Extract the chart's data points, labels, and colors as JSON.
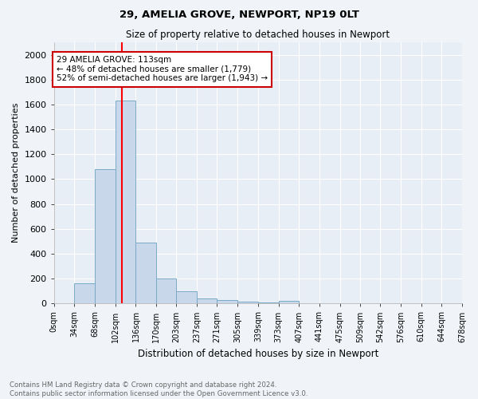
{
  "title1": "29, AMELIA GROVE, NEWPORT, NP19 0LT",
  "title2": "Size of property relative to detached houses in Newport",
  "xlabel": "Distribution of detached houses by size in Newport",
  "ylabel": "Number of detached properties",
  "bar_color": "#c8d8ea",
  "bar_edge_color": "#7aaac8",
  "background_color": "#e8eef5",
  "grid_color": "#ffffff",
  "annotation_box_color": "#cc0000",
  "annotation_line1": "29 AMELIA GROVE: 113sqm",
  "annotation_line2": "← 48% of detached houses are smaller (1,779)",
  "annotation_line3": "52% of semi-detached houses are larger (1,943) →",
  "red_line_x": 113,
  "bins": [
    0,
    34,
    68,
    102,
    136,
    170,
    203,
    237,
    271,
    305,
    339,
    373,
    407,
    441,
    475,
    509,
    542,
    576,
    610,
    644,
    678
  ],
  "bin_labels": [
    "0sqm",
    "34sqm",
    "68sqm",
    "102sqm",
    "136sqm",
    "170sqm",
    "203sqm",
    "237sqm",
    "271sqm",
    "305sqm",
    "339sqm",
    "373sqm",
    "407sqm",
    "441sqm",
    "475sqm",
    "509sqm",
    "542sqm",
    "576sqm",
    "610sqm",
    "644sqm",
    "678sqm"
  ],
  "bar_heights": [
    0,
    165,
    1080,
    1630,
    490,
    200,
    100,
    42,
    28,
    15,
    10,
    20,
    0,
    0,
    0,
    0,
    0,
    0,
    0,
    0
  ],
  "ylim": [
    0,
    2100
  ],
  "yticks": [
    0,
    200,
    400,
    600,
    800,
    1000,
    1200,
    1400,
    1600,
    1800,
    2000
  ],
  "footer1": "Contains HM Land Registry data © Crown copyright and database right 2024.",
  "footer2": "Contains public sector information licensed under the Open Government Licence v3.0."
}
